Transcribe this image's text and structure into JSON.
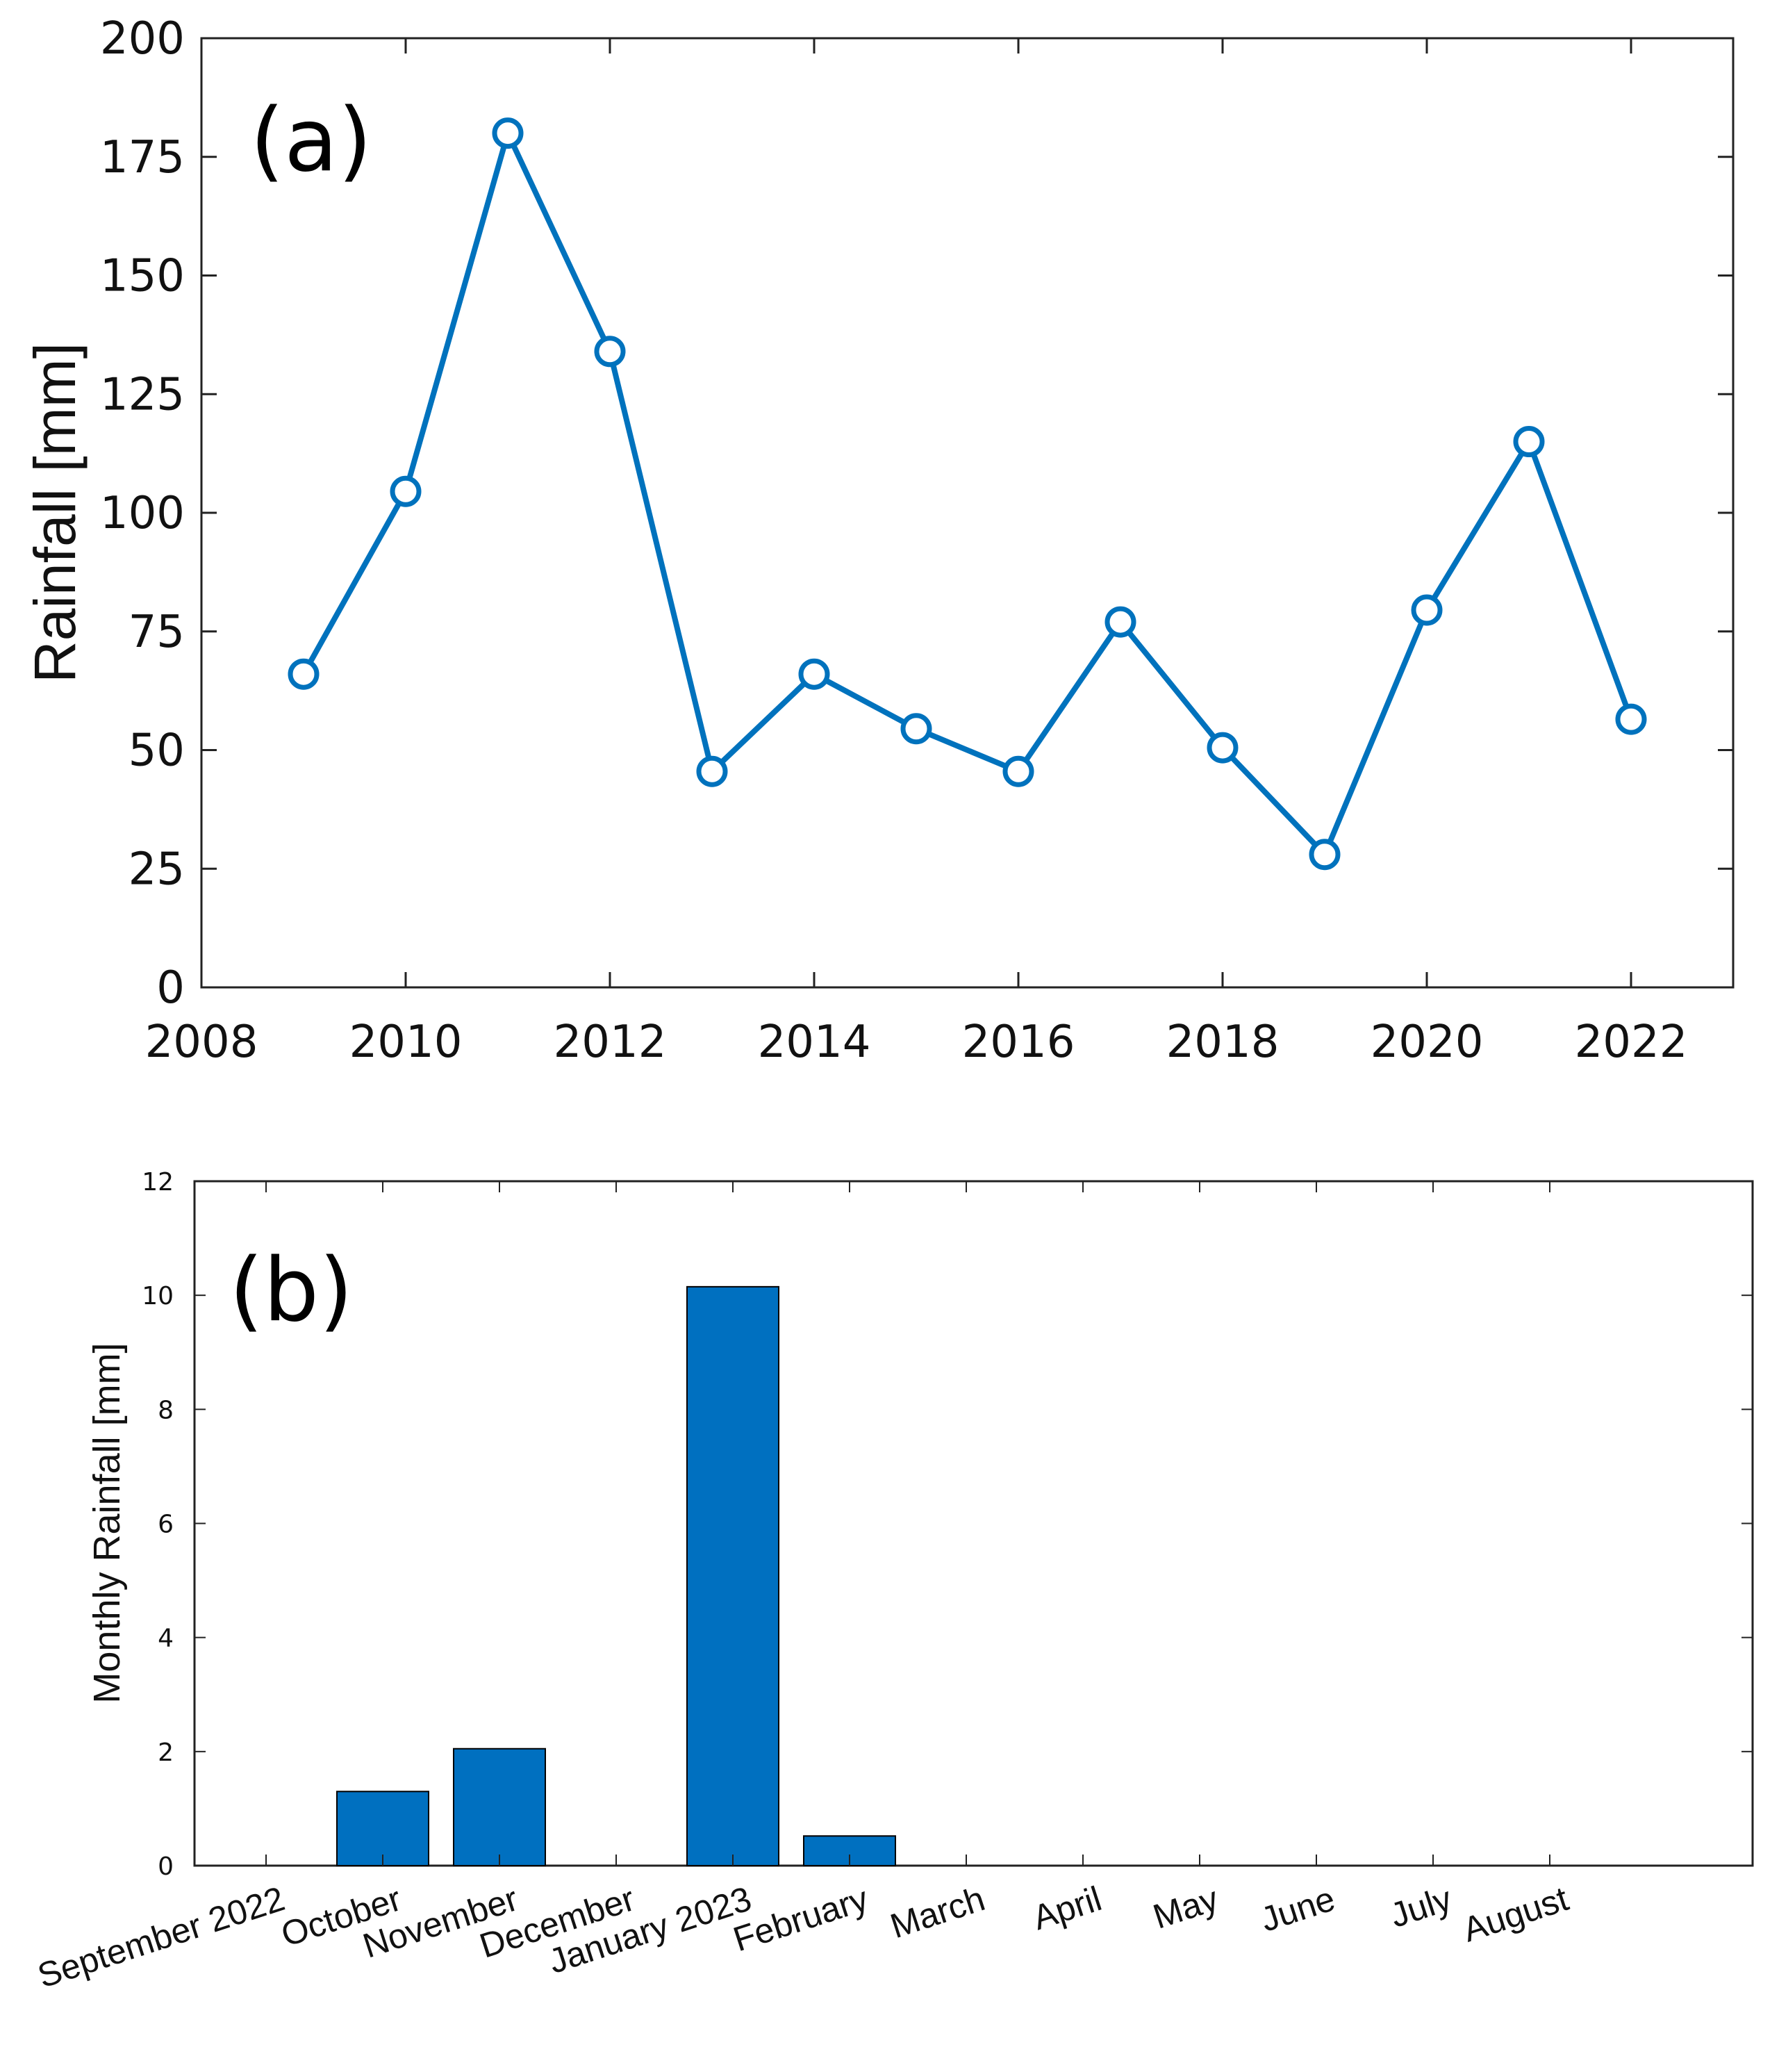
{
  "panels": {
    "a": {
      "tag": "(a)"
    },
    "b": {
      "tag": "(b)"
    }
  },
  "colors": {
    "line": "#0072BD",
    "bar": "#0070C0",
    "bar_edge": "#000000",
    "axis": "#222222"
  },
  "chart_data": [
    {
      "type": "line",
      "title": "",
      "xlabel": "",
      "ylabel": "Rainfall [mm]",
      "x": [
        2009,
        2010,
        2011,
        2012,
        2013,
        2014,
        2015,
        2016,
        2017,
        2018,
        2019,
        2020,
        2021,
        2022
      ],
      "y": [
        66,
        104.5,
        180,
        134,
        45.5,
        66,
        54.5,
        45.5,
        77,
        50.5,
        28,
        79.5,
        115,
        56.5
      ],
      "marker": "circle",
      "xlim": [
        2008,
        2023
      ],
      "ylim": [
        0,
        200
      ],
      "xticks": [
        2008,
        2010,
        2012,
        2014,
        2016,
        2018,
        2020,
        2022
      ],
      "yticks": [
        0,
        25,
        50,
        75,
        100,
        125,
        150,
        175,
        200
      ],
      "grid": false
    },
    {
      "type": "bar",
      "title": "",
      "xlabel": "",
      "ylabel": "Monthly Rainfall [mm]",
      "categories": [
        "September 2022",
        "October",
        "November",
        "December",
        "January 2023",
        "February",
        "March",
        "April",
        "May",
        "June",
        "July",
        "August"
      ],
      "values": [
        0,
        1.3,
        2.05,
        0,
        10.15,
        0.52,
        0,
        0,
        0,
        0,
        0,
        0
      ],
      "ylim": [
        0,
        12
      ],
      "yticks": [
        0,
        2,
        4,
        6,
        8,
        10,
        12
      ],
      "grid": false
    }
  ]
}
